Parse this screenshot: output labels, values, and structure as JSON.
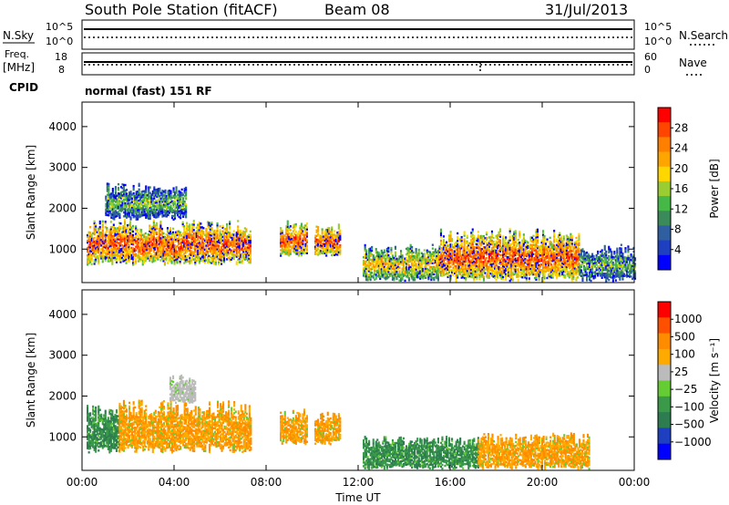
{
  "header": {
    "station": "South Pole Station (fitACF)",
    "beam": "Beam 08",
    "date": "31/Jul/2013"
  },
  "side_labels": {
    "nsky": "N.Sky",
    "nsearch": "N.Search",
    "freq": "Freq.",
    "freq_unit": "[MHz]",
    "nave": "Nave",
    "cpid": "CPID"
  },
  "noise_panel": {
    "left_ticks": [
      "10^5",
      "10^0"
    ],
    "right_ticks": [
      "10^5",
      "10^0"
    ]
  },
  "freq_panel": {
    "left_ticks": [
      "18",
      "8"
    ],
    "right_ticks": [
      "60",
      "0"
    ]
  },
  "cpid_text": "normal (fast) 151 RF",
  "chart_data": [
    {
      "type": "heatmap",
      "title": "",
      "ylabel": "Slant Range [km]",
      "xlabel": "",
      "x_ticks": [
        "00:00",
        "04:00",
        "08:00",
        "12:00",
        "16:00",
        "20:00",
        "00:00"
      ],
      "y_ticks": [
        "1000",
        "2000",
        "3000",
        "4000"
      ],
      "ylim": [
        180,
        4600
      ],
      "colorbar": {
        "label": "Power [dB]",
        "ticks": [
          "4",
          "8",
          "12",
          "16",
          "20",
          "24",
          "28"
        ],
        "colors": [
          "#0000ff",
          "#1e3fbf",
          "#2f5fa0",
          "#3a8a5a",
          "#46b848",
          "#9acd32",
          "#ffd700",
          "#ffa500",
          "#ff7f00",
          "#ff4500",
          "#ff0000"
        ]
      },
      "echo_regions": [
        {
          "t_start": 0.2,
          "t_end": 7.3,
          "r_min": 600,
          "r_max": 1700,
          "level": "high"
        },
        {
          "t_start": 1.0,
          "t_end": 4.5,
          "r_min": 1700,
          "r_max": 2600,
          "level": "low"
        },
        {
          "t_start": 8.6,
          "t_end": 9.8,
          "r_min": 800,
          "r_max": 1700,
          "level": "high"
        },
        {
          "t_start": 10.1,
          "t_end": 11.2,
          "r_min": 800,
          "r_max": 1600,
          "level": "high"
        },
        {
          "t_start": 12.2,
          "t_end": 15.5,
          "r_min": 200,
          "r_max": 1100,
          "level": "medium"
        },
        {
          "t_start": 15.5,
          "t_end": 21.6,
          "r_min": 200,
          "r_max": 1500,
          "level": "high"
        },
        {
          "t_start": 21.6,
          "t_end": 24.0,
          "r_min": 200,
          "r_max": 1100,
          "level": "low"
        }
      ]
    },
    {
      "type": "heatmap",
      "title": "",
      "ylabel": "Slant Range [km]",
      "xlabel": "Time UT",
      "x_ticks": [
        "00:00",
        "04:00",
        "08:00",
        "12:00",
        "16:00",
        "20:00",
        "00:00"
      ],
      "y_ticks": [
        "1000",
        "2000",
        "3000",
        "4000"
      ],
      "ylim": [
        180,
        4600
      ],
      "colorbar": {
        "label": "Velocity [m s⁻¹]",
        "ticks": [
          "1000",
          "500",
          "100",
          "25",
          "−25",
          "−100",
          "−500",
          "−1000"
        ],
        "colors": [
          "#0000ff",
          "#1e3fbf",
          "#2e7d50",
          "#3a9a4a",
          "#66cc33",
          "#bbbbbb",
          "#ffaa00",
          "#ff8c00",
          "#ff5000",
          "#ff0000"
        ]
      },
      "echo_regions": [
        {
          "t_start": 0.2,
          "t_end": 1.6,
          "r_min": 600,
          "r_max": 1800,
          "sign": "toward"
        },
        {
          "t_start": 1.6,
          "t_end": 7.3,
          "r_min": 600,
          "r_max": 1900,
          "sign": "away"
        },
        {
          "t_start": 3.8,
          "t_end": 4.9,
          "r_min": 1800,
          "r_max": 2500,
          "sign": "low"
        },
        {
          "t_start": 8.6,
          "t_end": 9.8,
          "r_min": 800,
          "r_max": 1700,
          "sign": "away"
        },
        {
          "t_start": 10.1,
          "t_end": 11.2,
          "r_min": 800,
          "r_max": 1600,
          "sign": "away"
        },
        {
          "t_start": 12.2,
          "t_end": 17.2,
          "r_min": 200,
          "r_max": 1000,
          "sign": "toward"
        },
        {
          "t_start": 17.2,
          "t_end": 22.0,
          "r_min": 200,
          "r_max": 1100,
          "sign": "away"
        }
      ]
    }
  ]
}
